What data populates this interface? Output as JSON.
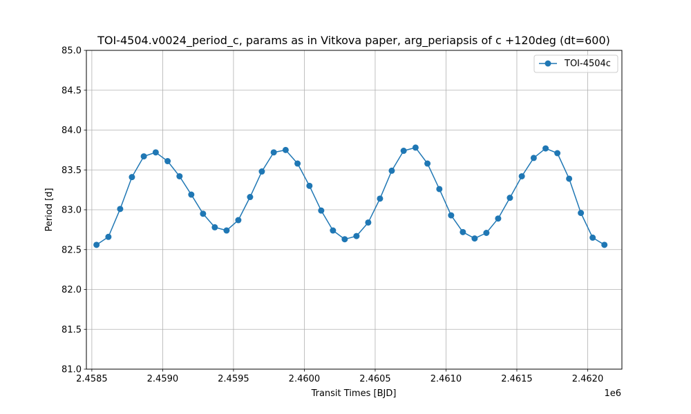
{
  "chart_data": {
    "type": "line",
    "title": "TOI-4504.v0024_period_c, params as in Vitkova paper, arg_periapsis of c +120deg (dt=600)",
    "xlabel": "Transit Times [BJD]",
    "ylabel": "Period [d]",
    "x_offset_label": "1e6",
    "xlim": [
      2458461.5,
      2462241.5
    ],
    "ylim": [
      81.0,
      85.0
    ],
    "x_ticks": [
      2458500,
      2459000,
      2459500,
      2460000,
      2460500,
      2461000,
      2461500,
      2462000
    ],
    "x_tick_labels": [
      "2.4585",
      "2.4590",
      "2.4595",
      "2.4600",
      "2.4605",
      "2.4610",
      "2.4615",
      "2.4620"
    ],
    "y_ticks": [
      81.0,
      81.5,
      82.0,
      82.5,
      83.0,
      83.5,
      84.0,
      84.5,
      85.0
    ],
    "y_tick_labels": [
      "81.0",
      "81.5",
      "82.0",
      "82.5",
      "83.0",
      "83.5",
      "84.0",
      "84.5",
      "85.0"
    ],
    "grid": true,
    "legend_position": "top-right",
    "series": [
      {
        "name": "TOI-4504c",
        "color": "#1f77b4",
        "marker": "circle",
        "x": [
          2458533,
          2458617,
          2458700,
          2458783,
          2458867,
          2458951,
          2459035,
          2459119,
          2459202,
          2459285,
          2459368,
          2459451,
          2459534,
          2459617,
          2459700,
          2459784,
          2459868,
          2459952,
          2460036,
          2460119,
          2460202,
          2460285,
          2460368,
          2460451,
          2460534,
          2460617,
          2460701,
          2460785,
          2460869,
          2460953,
          2461036,
          2461119,
          2461202,
          2461285,
          2461368,
          2461451,
          2461535,
          2461619,
          2461703,
          2461786,
          2461869,
          2461952,
          2462035,
          2462118
        ],
        "y": [
          82.56,
          82.66,
          83.01,
          83.41,
          83.67,
          83.72,
          83.61,
          83.42,
          83.19,
          82.95,
          82.78,
          82.74,
          82.87,
          83.16,
          83.48,
          83.72,
          83.75,
          83.58,
          83.3,
          82.99,
          82.74,
          82.63,
          82.67,
          82.84,
          83.14,
          83.49,
          83.74,
          83.78,
          83.58,
          83.26,
          82.93,
          82.72,
          82.64,
          82.71,
          82.89,
          83.15,
          83.42,
          83.65,
          83.77,
          83.71,
          83.39,
          82.96,
          82.65,
          82.56
        ]
      }
    ]
  }
}
